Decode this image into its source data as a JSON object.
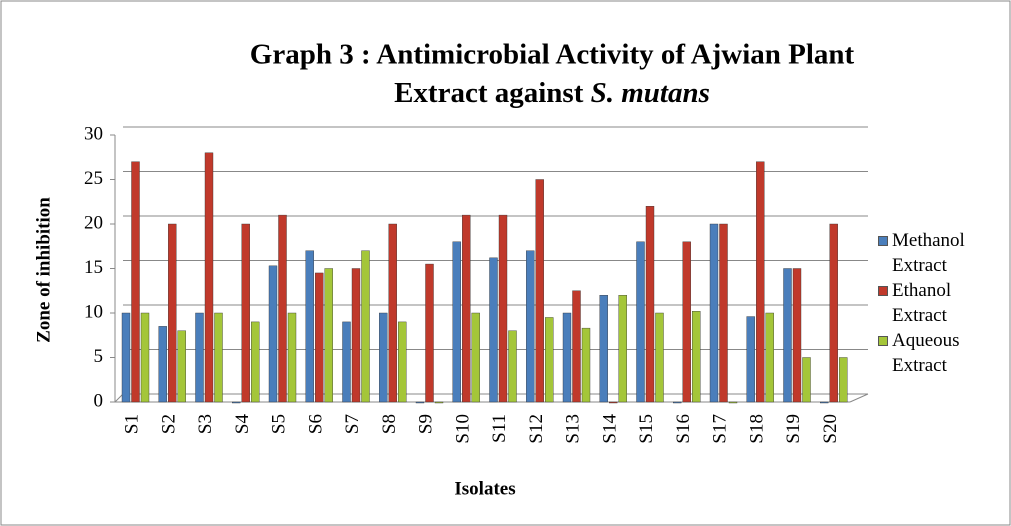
{
  "chart_data": {
    "type": "bar",
    "title": "Graph 3 : Antimicrobial Activity of Ajwian Plant",
    "title_line2": "Extract against",
    "title_italic": "S. mutans",
    "x_label": "Isolates",
    "y_label": "Zone of inhibition",
    "categories": [
      "S1",
      "S2",
      "S3",
      "S4",
      "S5",
      "S6",
      "S7",
      "S8",
      "S9",
      "S10",
      "S11",
      "S12",
      "S13",
      "S14",
      "S15",
      "S16",
      "S17",
      "S18",
      "S19",
      "S20"
    ],
    "series": [
      {
        "name": "Methanol Extract",
        "color": "#4a7ebb",
        "values": [
          10,
          8.5,
          10,
          0,
          15.3,
          17,
          9,
          10,
          0,
          18,
          16.2,
          17,
          10,
          12,
          18,
          0,
          20,
          9.6,
          15,
          0
        ]
      },
      {
        "name": "Ethanol Extract",
        "color": "#c0392b",
        "values": [
          27,
          20,
          28,
          20,
          21,
          14.5,
          15,
          20,
          15.5,
          21,
          21,
          25,
          12.5,
          0,
          22,
          18,
          20,
          27,
          15,
          20
        ]
      },
      {
        "name": "Aqueous Extract",
        "color": "#a4c639",
        "values": [
          10,
          8,
          10,
          9,
          10,
          15,
          17,
          9,
          0,
          10,
          8,
          9.5,
          8.3,
          12,
          10,
          10.2,
          0,
          10,
          5,
          5
        ]
      }
    ],
    "ylim": [
      0,
      30
    ],
    "yticks": [
      0,
      5,
      10,
      15,
      20,
      25,
      30
    ],
    "grid": true,
    "legend": "right"
  }
}
